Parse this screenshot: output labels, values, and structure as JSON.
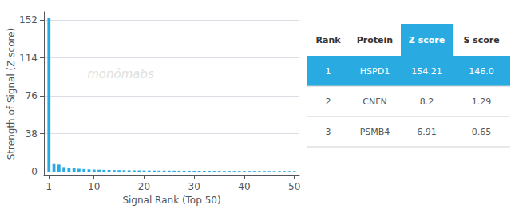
{
  "chart_data": {
    "type": "bar",
    "xlabel": "Signal Rank (Top 50)",
    "ylabel": "Strength of Signal (Z score)",
    "annotation": "monômabs",
    "x": [
      1,
      2,
      3,
      4,
      5,
      6,
      7,
      8,
      9,
      10,
      11,
      12,
      13,
      14,
      15,
      16,
      17,
      18,
      19,
      20,
      21,
      22,
      23,
      24,
      25,
      26,
      27,
      28,
      29,
      30,
      31,
      32,
      33,
      34,
      35,
      36,
      37,
      38,
      39,
      40,
      41,
      42,
      43,
      44,
      45,
      46,
      47,
      48,
      49,
      50
    ],
    "values": [
      154.21,
      8.2,
      6.91,
      4.5,
      3.8,
      3.2,
      2.8,
      2.5,
      2.2,
      2.0,
      1.85,
      1.7,
      1.6,
      1.5,
      1.42,
      1.35,
      1.28,
      1.22,
      1.17,
      1.12,
      1.08,
      1.04,
      1.0,
      0.97,
      0.94,
      0.91,
      0.88,
      0.86,
      0.84,
      0.82,
      0.8,
      0.78,
      0.76,
      0.74,
      0.72,
      0.7,
      0.69,
      0.68,
      0.67,
      0.66,
      0.65,
      0.64,
      0.63,
      0.62,
      0.61,
      0.6,
      0.59,
      0.58,
      0.57,
      0.56
    ],
    "color": "#29ABE2",
    "xlim": [
      0,
      51
    ],
    "xticks": [
      1,
      10,
      20,
      30,
      40,
      50
    ],
    "ylim": [
      -4,
      160
    ],
    "yticks": [
      0,
      38,
      76,
      114,
      152
    ],
    "grid": true,
    "table": {
      "columns": [
        "Rank",
        "Protein",
        "Z score",
        "S score"
      ],
      "rows": [
        [
          "1",
          "HSPD1",
          "154.21",
          "146.0"
        ],
        [
          "2",
          "CNFN",
          "8.2",
          "1.29"
        ],
        [
          "3",
          "PSMB4",
          "6.91",
          "0.65"
        ]
      ]
    }
  }
}
